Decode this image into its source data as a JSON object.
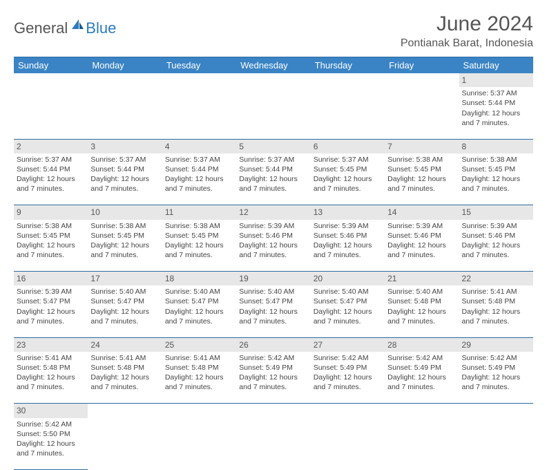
{
  "logo": {
    "general": "General",
    "blue": "Blue",
    "icon_color": "#2b7bbf"
  },
  "title": "June 2024",
  "location": "Pontianak Barat, Indonesia",
  "colors": {
    "header_bg": "#3a84c5",
    "header_text": "#ffffff",
    "daynum_bg": "#e7e7e7",
    "border": "#2b6ba3",
    "text": "#444444"
  },
  "day_headers": [
    "Sunday",
    "Monday",
    "Tuesday",
    "Wednesday",
    "Thursday",
    "Friday",
    "Saturday"
  ],
  "weeks": [
    [
      null,
      null,
      null,
      null,
      null,
      null,
      {
        "n": "1",
        "sr": "5:37 AM",
        "ss": "5:44 PM",
        "dl": "12 hours",
        "dm": "and 7 minutes."
      }
    ],
    [
      {
        "n": "2",
        "sr": "5:37 AM",
        "ss": "5:44 PM",
        "dl": "12 hours",
        "dm": "and 7 minutes."
      },
      {
        "n": "3",
        "sr": "5:37 AM",
        "ss": "5:44 PM",
        "dl": "12 hours",
        "dm": "and 7 minutes."
      },
      {
        "n": "4",
        "sr": "5:37 AM",
        "ss": "5:44 PM",
        "dl": "12 hours",
        "dm": "and 7 minutes."
      },
      {
        "n": "5",
        "sr": "5:37 AM",
        "ss": "5:44 PM",
        "dl": "12 hours",
        "dm": "and 7 minutes."
      },
      {
        "n": "6",
        "sr": "5:37 AM",
        "ss": "5:45 PM",
        "dl": "12 hours",
        "dm": "and 7 minutes."
      },
      {
        "n": "7",
        "sr": "5:38 AM",
        "ss": "5:45 PM",
        "dl": "12 hours",
        "dm": "and 7 minutes."
      },
      {
        "n": "8",
        "sr": "5:38 AM",
        "ss": "5:45 PM",
        "dl": "12 hours",
        "dm": "and 7 minutes."
      }
    ],
    [
      {
        "n": "9",
        "sr": "5:38 AM",
        "ss": "5:45 PM",
        "dl": "12 hours",
        "dm": "and 7 minutes."
      },
      {
        "n": "10",
        "sr": "5:38 AM",
        "ss": "5:45 PM",
        "dl": "12 hours",
        "dm": "and 7 minutes."
      },
      {
        "n": "11",
        "sr": "5:38 AM",
        "ss": "5:45 PM",
        "dl": "12 hours",
        "dm": "and 7 minutes."
      },
      {
        "n": "12",
        "sr": "5:39 AM",
        "ss": "5:46 PM",
        "dl": "12 hours",
        "dm": "and 7 minutes."
      },
      {
        "n": "13",
        "sr": "5:39 AM",
        "ss": "5:46 PM",
        "dl": "12 hours",
        "dm": "and 7 minutes."
      },
      {
        "n": "14",
        "sr": "5:39 AM",
        "ss": "5:46 PM",
        "dl": "12 hours",
        "dm": "and 7 minutes."
      },
      {
        "n": "15",
        "sr": "5:39 AM",
        "ss": "5:46 PM",
        "dl": "12 hours",
        "dm": "and 7 minutes."
      }
    ],
    [
      {
        "n": "16",
        "sr": "5:39 AM",
        "ss": "5:47 PM",
        "dl": "12 hours",
        "dm": "and 7 minutes."
      },
      {
        "n": "17",
        "sr": "5:40 AM",
        "ss": "5:47 PM",
        "dl": "12 hours",
        "dm": "and 7 minutes."
      },
      {
        "n": "18",
        "sr": "5:40 AM",
        "ss": "5:47 PM",
        "dl": "12 hours",
        "dm": "and 7 minutes."
      },
      {
        "n": "19",
        "sr": "5:40 AM",
        "ss": "5:47 PM",
        "dl": "12 hours",
        "dm": "and 7 minutes."
      },
      {
        "n": "20",
        "sr": "5:40 AM",
        "ss": "5:47 PM",
        "dl": "12 hours",
        "dm": "and 7 minutes."
      },
      {
        "n": "21",
        "sr": "5:40 AM",
        "ss": "5:48 PM",
        "dl": "12 hours",
        "dm": "and 7 minutes."
      },
      {
        "n": "22",
        "sr": "5:41 AM",
        "ss": "5:48 PM",
        "dl": "12 hours",
        "dm": "and 7 minutes."
      }
    ],
    [
      {
        "n": "23",
        "sr": "5:41 AM",
        "ss": "5:48 PM",
        "dl": "12 hours",
        "dm": "and 7 minutes."
      },
      {
        "n": "24",
        "sr": "5:41 AM",
        "ss": "5:48 PM",
        "dl": "12 hours",
        "dm": "and 7 minutes."
      },
      {
        "n": "25",
        "sr": "5:41 AM",
        "ss": "5:48 PM",
        "dl": "12 hours",
        "dm": "and 7 minutes."
      },
      {
        "n": "26",
        "sr": "5:42 AM",
        "ss": "5:49 PM",
        "dl": "12 hours",
        "dm": "and 7 minutes."
      },
      {
        "n": "27",
        "sr": "5:42 AM",
        "ss": "5:49 PM",
        "dl": "12 hours",
        "dm": "and 7 minutes."
      },
      {
        "n": "28",
        "sr": "5:42 AM",
        "ss": "5:49 PM",
        "dl": "12 hours",
        "dm": "and 7 minutes."
      },
      {
        "n": "29",
        "sr": "5:42 AM",
        "ss": "5:49 PM",
        "dl": "12 hours",
        "dm": "and 7 minutes."
      }
    ],
    [
      {
        "n": "30",
        "sr": "5:42 AM",
        "ss": "5:50 PM",
        "dl": "12 hours",
        "dm": "and 7 minutes."
      },
      null,
      null,
      null,
      null,
      null,
      null
    ]
  ],
  "labels": {
    "sunrise_prefix": "Sunrise: ",
    "sunset_prefix": "Sunset: ",
    "daylight_prefix": "Daylight: "
  }
}
